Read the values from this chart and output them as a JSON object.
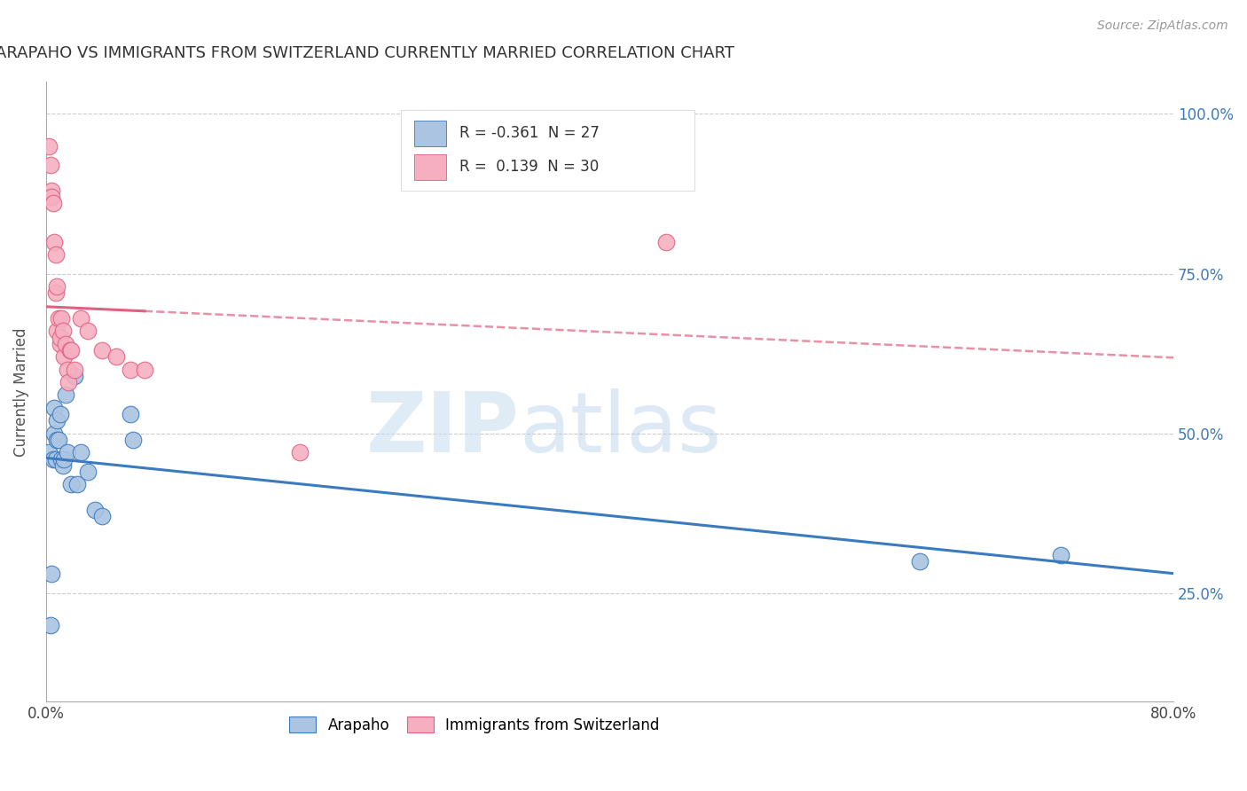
{
  "title": "ARAPAHO VS IMMIGRANTS FROM SWITZERLAND CURRENTLY MARRIED CORRELATION CHART",
  "source": "Source: ZipAtlas.com",
  "ylabel": "Currently Married",
  "arapaho_color": "#aac4e2",
  "swiss_color": "#f5afc0",
  "arapaho_line_color": "#3a7abf",
  "swiss_line_color": "#e06080",
  "watermark_zip": "ZIP",
  "watermark_atlas": "atlas",
  "background_color": "#ffffff",
  "grid_color": "#cccccc",
  "xlim": [
    0.0,
    0.8
  ],
  "ylim": [
    0.08,
    1.05
  ],
  "y_tick_positions": [
    0.25,
    0.5,
    0.75,
    1.0
  ],
  "y_tick_labels": [
    "25.0%",
    "50.0%",
    "75.0%",
    "100.0%"
  ],
  "arapaho_R": "-0.361",
  "arapaho_N": "27",
  "swiss_R": "0.139",
  "swiss_N": "30",
  "arapaho_x": [
    0.002,
    0.003,
    0.004,
    0.005,
    0.006,
    0.006,
    0.007,
    0.008,
    0.008,
    0.009,
    0.01,
    0.011,
    0.012,
    0.013,
    0.014,
    0.015,
    0.018,
    0.02,
    0.022,
    0.025,
    0.03,
    0.035,
    0.04,
    0.06,
    0.062,
    0.62,
    0.72
  ],
  "arapaho_y": [
    0.47,
    0.2,
    0.28,
    0.46,
    0.5,
    0.54,
    0.46,
    0.49,
    0.52,
    0.49,
    0.53,
    0.46,
    0.45,
    0.46,
    0.56,
    0.47,
    0.42,
    0.59,
    0.42,
    0.47,
    0.44,
    0.38,
    0.37,
    0.53,
    0.49,
    0.3,
    0.31
  ],
  "swiss_x": [
    0.002,
    0.003,
    0.004,
    0.004,
    0.005,
    0.006,
    0.007,
    0.007,
    0.008,
    0.008,
    0.009,
    0.01,
    0.01,
    0.011,
    0.012,
    0.013,
    0.014,
    0.015,
    0.016,
    0.017,
    0.018,
    0.02,
    0.025,
    0.03,
    0.04,
    0.05,
    0.06,
    0.07,
    0.18,
    0.44
  ],
  "swiss_y": [
    0.95,
    0.92,
    0.88,
    0.87,
    0.86,
    0.8,
    0.78,
    0.72,
    0.73,
    0.66,
    0.68,
    0.64,
    0.65,
    0.68,
    0.66,
    0.62,
    0.64,
    0.6,
    0.58,
    0.63,
    0.63,
    0.6,
    0.68,
    0.66,
    0.63,
    0.62,
    0.6,
    0.6,
    0.47,
    0.8
  ]
}
